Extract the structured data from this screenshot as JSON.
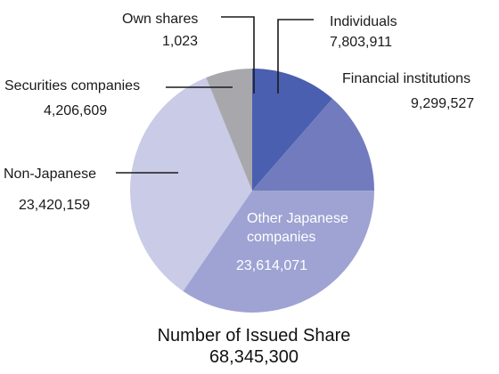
{
  "chart_data": {
    "type": "pie",
    "slices": [
      {
        "name": "Individuals",
        "label": "Individuals",
        "value_text": "7,803,911",
        "value": 7803911,
        "color": "#4a5fb0"
      },
      {
        "name": "Financial institutions",
        "label": "Financial institutions",
        "value_text": "9,299,527",
        "value": 9299527,
        "color": "#717bbd"
      },
      {
        "name": "Other Japanese companies",
        "label_lines": [
          "Other Japanese",
          "companies"
        ],
        "value_text": "23,614,071",
        "value": 23614071,
        "color": "#9ea3d3"
      },
      {
        "name": "Non-Japanese",
        "label": "Non-Japanese",
        "value_text": "23,420,159",
        "value": 23420159,
        "color": "#c9cbe7"
      },
      {
        "name": "Securities companies",
        "label": "Securities companies",
        "value_text": "4,206,609",
        "value": 4206609,
        "color": "#a8a8ac"
      },
      {
        "name": "Own shares",
        "label": "Own shares",
        "value_text": "1,023",
        "value": 1023,
        "color": "#ffffff"
      }
    ],
    "start_angle_deg": 0,
    "direction": "clockwise"
  },
  "caption": {
    "title": "Number of Issued Share",
    "total": "68,345,300"
  }
}
